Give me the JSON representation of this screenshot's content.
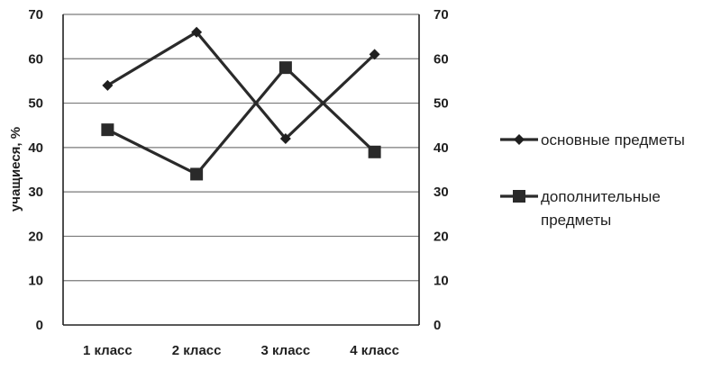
{
  "chart_data": {
    "type": "line",
    "categories": [
      "1 класс",
      "2 класс",
      "3 класс",
      "4 класс"
    ],
    "series": [
      {
        "name": "основные предметы",
        "values": [
          54,
          66,
          42,
          61
        ],
        "marker": "diamond",
        "color": "#2a2a2a"
      },
      {
        "name": "дополнительные предметы",
        "values": [
          44,
          34,
          58,
          39
        ],
        "marker": "square",
        "color": "#2a2a2a"
      }
    ],
    "title": "",
    "xlabel": "",
    "ylabel": "учащиеся, %",
    "ylim": [
      0,
      70
    ],
    "yticks": [
      0,
      10,
      20,
      30,
      40,
      50,
      60,
      70
    ],
    "secondary_yticks": [
      0,
      10,
      20,
      30,
      40,
      50,
      60,
      70
    ],
    "grid": true,
    "legend_position": "right"
  }
}
